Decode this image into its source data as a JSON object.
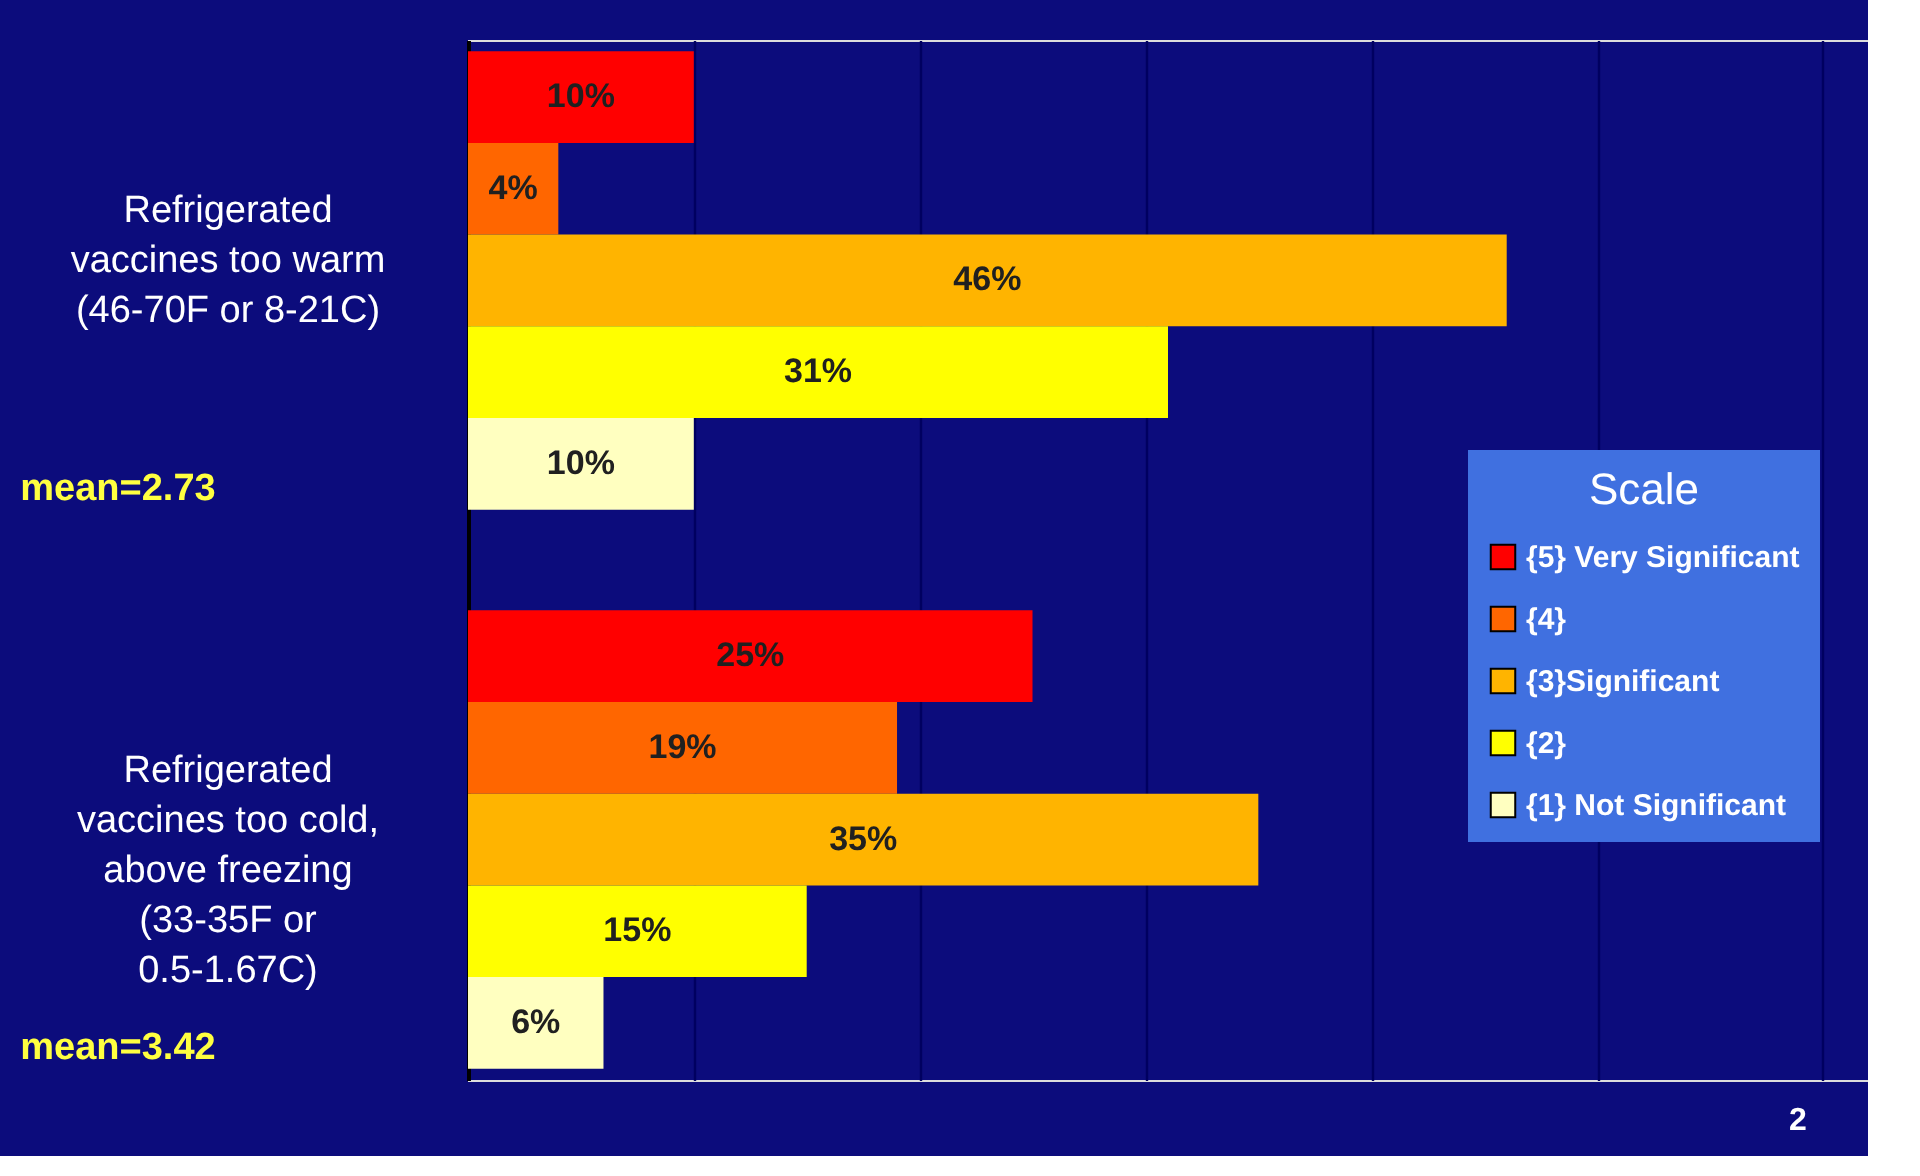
{
  "chart_data": {
    "type": "bar",
    "orientation": "horizontal",
    "categories": [
      "Refrigerated vaccines too warm (46-70F or 8-21C)",
      "Refrigerated vaccines too cold, above freezing (33-35F or 0.5-1.67C)"
    ],
    "series": [
      {
        "name": "{5} Very Significant",
        "color": "#ff0000",
        "values": [
          10,
          25
        ],
        "value_labels": [
          "10%",
          "25%"
        ]
      },
      {
        "name": "{4}",
        "color": "#ff6600",
        "values": [
          4,
          19
        ],
        "value_labels": [
          "4%",
          "19%"
        ]
      },
      {
        "name": "{3}Significant",
        "color": "#ffb400",
        "values": [
          46,
          35
        ],
        "value_labels": [
          "46%",
          "35%"
        ]
      },
      {
        "name": "{2}",
        "color": "#ffff00",
        "values": [
          31,
          15
        ],
        "value_labels": [
          "31%",
          "15%"
        ]
      },
      {
        "name": "{1} Not Significant",
        "color": "#ffffc0",
        "values": [
          10,
          6
        ],
        "value_labels": [
          "10%",
          "6%"
        ]
      }
    ],
    "xlim": [
      0,
      62
    ],
    "xticks": [
      {
        "value": 10,
        "label": null
      },
      {
        "value": 20,
        "label": null
      },
      {
        "value": 30,
        "label": null
      },
      {
        "value": 40,
        "label": null
      },
      {
        "value": 50,
        "label": null
      },
      {
        "value": 60,
        "label": null
      }
    ],
    "tick_labels": "y",
    "grid": "x",
    "legend": "right",
    "legend_title": "Scale",
    "annotations": [
      "mean=2.73",
      "mean=3.42",
      "2"
    ]
  }
}
